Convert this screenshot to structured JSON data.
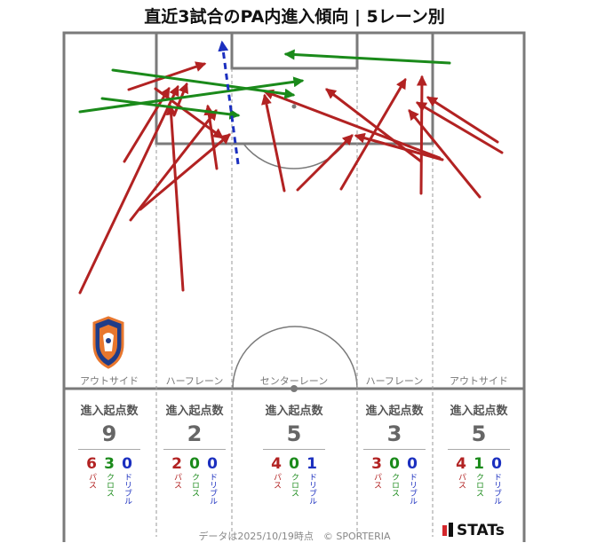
{
  "title": "直近3試合のPA内進入傾向 | 5レーン別",
  "lanes": [
    {
      "key": "out_left",
      "label": "アウトサイド",
      "stat_head": "進入起点数",
      "total": "9",
      "pass": "6",
      "cross": "3",
      "dribble": "0"
    },
    {
      "key": "half_left",
      "label": "ハーフレーン",
      "stat_head": "進入起点数",
      "total": "2",
      "pass": "2",
      "cross": "0",
      "dribble": "0"
    },
    {
      "key": "center",
      "label": "センターレーン",
      "stat_head": "進入起点数",
      "total": "5",
      "pass": "4",
      "cross": "0",
      "dribble": "1"
    },
    {
      "key": "half_right",
      "label": "ハーフレーン",
      "stat_head": "進入起点数",
      "total": "3",
      "pass": "3",
      "cross": "0",
      "dribble": "0"
    },
    {
      "key": "out_right",
      "label": "アウトサイド",
      "stat_head": "進入起点数",
      "total": "5",
      "pass": "4",
      "cross": "1",
      "dribble": "0"
    }
  ],
  "type_labels": {
    "pass": "パス",
    "cross": "クロス",
    "dribble": "ドリブル"
  },
  "footer": "データは2025/10/19時点　© SPORTERIA",
  "brand": "STATs",
  "colors": {
    "pass": "#b22222",
    "cross": "#1a8a1a",
    "dribble": "#1b2fbf",
    "pitch_line": "#7a7a7a",
    "lane_line": "#9a9a9a"
  },
  "icons": [
    "club-crest-icon"
  ],
  "arrows": [
    {
      "type": "pass"
    },
    {
      "type": "pass"
    },
    {
      "type": "pass"
    },
    {
      "type": "pass"
    },
    {
      "type": "pass"
    },
    {
      "type": "pass"
    },
    {
      "type": "pass"
    },
    {
      "type": "pass"
    },
    {
      "type": "pass"
    },
    {
      "type": "pass"
    },
    {
      "type": "pass"
    },
    {
      "type": "pass"
    },
    {
      "type": "pass"
    },
    {
      "type": "pass"
    },
    {
      "type": "pass"
    },
    {
      "type": "pass"
    },
    {
      "type": "pass"
    },
    {
      "type": "pass"
    },
    {
      "type": "pass"
    },
    {
      "type": "cross"
    },
    {
      "type": "cross"
    },
    {
      "type": "cross"
    },
    {
      "type": "cross"
    },
    {
      "type": "dribble"
    }
  ]
}
